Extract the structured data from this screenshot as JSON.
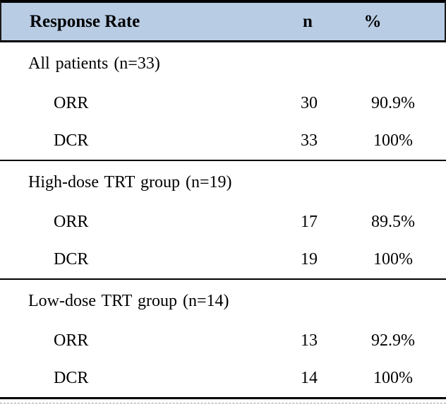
{
  "table": {
    "header": {
      "label": "Response Rate",
      "n": "n",
      "pct": "%"
    },
    "sections": [
      {
        "label": "All patients (n=33)",
        "rows": [
          {
            "label": "ORR",
            "n": "30",
            "pct": "90.9%"
          },
          {
            "label": "DCR",
            "n": "33",
            "pct": "100%"
          }
        ]
      },
      {
        "label": "High-dose TRT group (n=19)",
        "rows": [
          {
            "label": "ORR",
            "n": "17",
            "pct": "89.5%"
          },
          {
            "label": "DCR",
            "n": "19",
            "pct": "100%"
          }
        ]
      },
      {
        "label": "Low-dose TRT group (n=14)",
        "rows": [
          {
            "label": "ORR",
            "n": "13",
            "pct": "92.9%"
          },
          {
            "label": "DCR",
            "n": "14",
            "pct": "100%"
          }
        ]
      }
    ],
    "colors": {
      "header_bg": "#b8cce4",
      "border": "#000000",
      "gridline": "#999999"
    }
  }
}
